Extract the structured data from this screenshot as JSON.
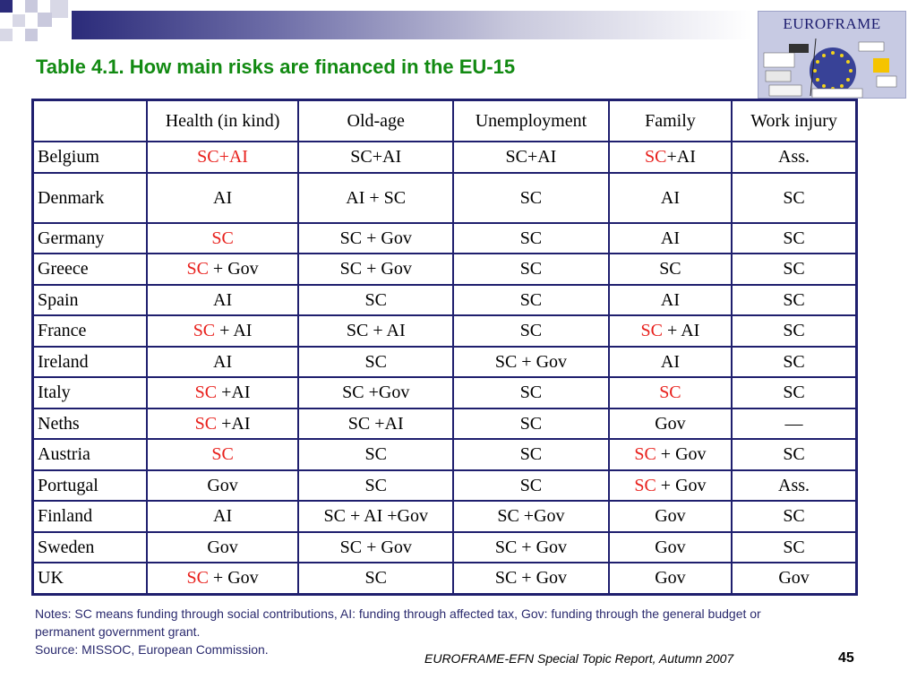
{
  "title": "Table 4.1. How main risks are financed in the EU-15",
  "logo": {
    "text": "EUROFRAME"
  },
  "table": {
    "headers": [
      "",
      "Health (in kind)",
      "Old-age",
      "Unemployment",
      "Family",
      "Work injury"
    ],
    "rows": [
      [
        {
          "t": "Belgium"
        },
        {
          "parts": [
            {
              "t": "SC+AI",
              "red": true
            }
          ]
        },
        {
          "t": "SC+AI"
        },
        {
          "t": "SC+AI"
        },
        {
          "parts": [
            {
              "t": "SC",
              "red": true
            },
            {
              "t": "+AI"
            }
          ]
        },
        {
          "t": "Ass."
        }
      ],
      [
        {
          "t": "Denmark"
        },
        {
          "t": "AI"
        },
        {
          "t": "AI + SC"
        },
        {
          "t": "SC"
        },
        {
          "t": "AI"
        },
        {
          "t": "SC"
        }
      ],
      [
        {
          "t": "Germany"
        },
        {
          "parts": [
            {
              "t": "SC",
              "red": true
            }
          ]
        },
        {
          "t": "SC + Gov"
        },
        {
          "t": "SC"
        },
        {
          "t": "AI"
        },
        {
          "t": "SC"
        }
      ],
      [
        {
          "t": "Greece"
        },
        {
          "parts": [
            {
              "t": "SC",
              "red": true
            },
            {
              "t": " + Gov"
            }
          ]
        },
        {
          "t": "SC + Gov"
        },
        {
          "t": "SC"
        },
        {
          "t": "SC"
        },
        {
          "t": "SC"
        }
      ],
      [
        {
          "t": "Spain"
        },
        {
          "t": "AI"
        },
        {
          "t": "SC"
        },
        {
          "t": "SC"
        },
        {
          "t": "AI"
        },
        {
          "t": "SC"
        }
      ],
      [
        {
          "t": "France"
        },
        {
          "parts": [
            {
              "t": "SC",
              "red": true
            },
            {
              "t": " + AI"
            }
          ]
        },
        {
          "t": "SC + AI"
        },
        {
          "t": "SC"
        },
        {
          "parts": [
            {
              "t": "SC",
              "red": true
            },
            {
              "t": " + AI"
            }
          ]
        },
        {
          "t": "SC"
        }
      ],
      [
        {
          "t": "Ireland"
        },
        {
          "t": "AI"
        },
        {
          "t": "SC"
        },
        {
          "t": "SC + Gov"
        },
        {
          "t": "AI"
        },
        {
          "t": "SC"
        }
      ],
      [
        {
          "t": "Italy"
        },
        {
          "parts": [
            {
              "t": "SC",
              "red": true
            },
            {
              "t": " +AI"
            }
          ]
        },
        {
          "t": "SC +Gov"
        },
        {
          "t": "SC"
        },
        {
          "parts": [
            {
              "t": "SC",
              "red": true
            }
          ]
        },
        {
          "t": "SC"
        }
      ],
      [
        {
          "t": "Neths"
        },
        {
          "parts": [
            {
              "t": "SC",
              "red": true
            },
            {
              "t": " +AI"
            }
          ]
        },
        {
          "t": "SC +AI"
        },
        {
          "t": "SC"
        },
        {
          "t": "Gov"
        },
        {
          "t": "—"
        }
      ],
      [
        {
          "t": "Austria"
        },
        {
          "parts": [
            {
              "t": "SC",
              "red": true
            }
          ]
        },
        {
          "t": "SC"
        },
        {
          "t": "SC"
        },
        {
          "parts": [
            {
              "t": "SC",
              "red": true
            },
            {
              "t": " + Gov"
            }
          ]
        },
        {
          "t": "SC"
        }
      ],
      [
        {
          "t": "Portugal"
        },
        {
          "t": "Gov"
        },
        {
          "t": "SC"
        },
        {
          "t": "SC"
        },
        {
          "parts": [
            {
              "t": "SC",
              "red": true
            },
            {
              "t": " + Gov"
            }
          ]
        },
        {
          "t": "Ass."
        }
      ],
      [
        {
          "t": "Finland"
        },
        {
          "t": "AI"
        },
        {
          "t": "SC + AI +Gov"
        },
        {
          "t": "SC +Gov"
        },
        {
          "t": "Gov"
        },
        {
          "t": "SC"
        }
      ],
      [
        {
          "t": "Sweden"
        },
        {
          "t": "Gov"
        },
        {
          "t": "SC + Gov"
        },
        {
          "t": "SC + Gov"
        },
        {
          "t": "Gov"
        },
        {
          "t": "SC"
        }
      ],
      [
        {
          "t": "UK"
        },
        {
          "parts": [
            {
              "t": "SC",
              "red": true
            },
            {
              "t": " + Gov"
            }
          ]
        },
        {
          "t": "SC"
        },
        {
          "t": "SC + Gov"
        },
        {
          "t": "Gov"
        },
        {
          "t": "Gov"
        }
      ]
    ]
  },
  "notes": {
    "line1": "Notes: SC means funding through social contributions, AI: funding through affected tax, Gov: funding through the general budget or permanent government grant.",
    "line2": "Source: MISSOC, European Commission."
  },
  "footer": {
    "text": "EUROFRAME-EFN Special Topic Report, Autumn 2007",
    "page": "45"
  },
  "colors": {
    "title": "#128a12",
    "table_border": "#1f1f6e",
    "highlight": "#e8201c",
    "notes": "#2a2a6e"
  }
}
